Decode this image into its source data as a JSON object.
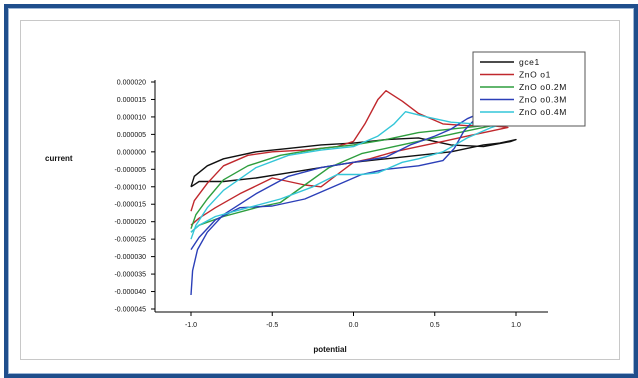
{
  "chart_data": {
    "type": "line",
    "title": "",
    "xlabel": "potential",
    "ylabel": "current",
    "xlim": [
      -1.0,
      1.0
    ],
    "ylim": [
      -4.5e-05,
      2e-05
    ],
    "xticks": [
      -1.0,
      -0.5,
      0.0,
      0.5,
      1.0
    ],
    "xtick_labels": [
      "-1.0",
      "-0.5",
      "0.0",
      "0.5",
      "1.0"
    ],
    "yticks": [
      2e-05,
      1.5e-05,
      1e-05,
      5e-06,
      0.0,
      -5e-06,
      -1e-05,
      -1.5e-05,
      -2e-05,
      -2.5e-05,
      -3e-05,
      -3.5e-05,
      -4e-05,
      -4.5e-05
    ],
    "ytick_labels": [
      "0.000020",
      "0.000015",
      "0.000010",
      "0.000005",
      "0.000000",
      "-0.000005",
      "-0.000010",
      "-0.000015",
      "-0.000020",
      "-0.000025",
      "-0.000030",
      "-0.000035",
      "-0.000040",
      "-0.000045"
    ],
    "legend_position": "top-right",
    "grid": false,
    "series": [
      {
        "name": "gce1",
        "color": "#111111",
        "points": [
          [
            -1.0,
            -1e-05
          ],
          [
            -0.98,
            -7e-06
          ],
          [
            -0.9,
            -4e-06
          ],
          [
            -0.8,
            -2e-06
          ],
          [
            -0.6,
            0.0
          ],
          [
            -0.4,
            1e-06
          ],
          [
            -0.2,
            2e-06
          ],
          [
            0.0,
            2.5e-06
          ],
          [
            0.2,
            3.5e-06
          ],
          [
            0.4,
            4e-06
          ],
          [
            0.6,
            2e-06
          ],
          [
            0.8,
            1.5e-06
          ],
          [
            0.97,
            3e-06
          ],
          [
            1.0,
            3.5e-06
          ],
          [
            0.9,
            2.5e-06
          ],
          [
            0.8,
            2e-06
          ],
          [
            0.6,
            0.0
          ],
          [
            0.4,
            -1e-06
          ],
          [
            0.2,
            -2e-06
          ],
          [
            0.0,
            -3e-06
          ],
          [
            -0.2,
            -4.5e-06
          ],
          [
            -0.4,
            -6e-06
          ],
          [
            -0.6,
            -7.5e-06
          ],
          [
            -0.8,
            -8.5e-06
          ],
          [
            -0.95,
            -8.5e-06
          ],
          [
            -1.0,
            -1e-05
          ]
        ]
      },
      {
        "name": "ZnO o1",
        "color": "#c0282d",
        "points": [
          [
            -1.0,
            -1.7e-05
          ],
          [
            -0.98,
            -1.4e-05
          ],
          [
            -0.9,
            -9e-06
          ],
          [
            -0.8,
            -4e-06
          ],
          [
            -0.65,
            -1e-06
          ],
          [
            -0.5,
            0.0
          ],
          [
            -0.3,
            5e-07
          ],
          [
            -0.1,
            1.5e-06
          ],
          [
            0.0,
            3e-06
          ],
          [
            0.07,
            8e-06
          ],
          [
            0.15,
            1.5e-05
          ],
          [
            0.2,
            1.75e-05
          ],
          [
            0.3,
            1.45e-05
          ],
          [
            0.4,
            1.1e-05
          ],
          [
            0.55,
            8e-06
          ],
          [
            0.7,
            7.5e-06
          ],
          [
            0.85,
            7.5e-06
          ],
          [
            0.95,
            7e-06
          ],
          [
            0.85,
            6e-06
          ],
          [
            0.7,
            4.5e-06
          ],
          [
            0.55,
            3e-06
          ],
          [
            0.4,
            1.5e-06
          ],
          [
            0.25,
            0.0
          ],
          [
            0.1,
            -2e-06
          ],
          [
            0.0,
            -3e-06
          ],
          [
            -0.1,
            -6.5e-06
          ],
          [
            -0.2,
            -1e-05
          ],
          [
            -0.3,
            -9.5e-06
          ],
          [
            -0.5,
            -7.5e-06
          ],
          [
            -0.7,
            -1.2e-05
          ],
          [
            -0.85,
            -1.6e-05
          ],
          [
            -0.95,
            -1.9e-05
          ],
          [
            -1.0,
            -2.1e-05
          ]
        ]
      },
      {
        "name": "ZnO o0.2M",
        "color": "#2e9e3e",
        "points": [
          [
            -1.0,
            -2.2e-05
          ],
          [
            -0.97,
            -1.8e-05
          ],
          [
            -0.9,
            -1.35e-05
          ],
          [
            -0.8,
            -8e-06
          ],
          [
            -0.65,
            -4e-06
          ],
          [
            -0.45,
            -1e-06
          ],
          [
            -0.2,
            1e-06
          ],
          [
            0.0,
            2e-06
          ],
          [
            0.2,
            3.5e-06
          ],
          [
            0.4,
            5.5e-06
          ],
          [
            0.6,
            6.5e-06
          ],
          [
            0.8,
            7.5e-06
          ],
          [
            0.95,
            9e-06
          ],
          [
            0.85,
            7.5e-06
          ],
          [
            0.65,
            5.5e-06
          ],
          [
            0.45,
            3.5e-06
          ],
          [
            0.25,
            1.5e-06
          ],
          [
            0.05,
            -5e-07
          ],
          [
            -0.15,
            -4.5e-06
          ],
          [
            -0.3,
            -9.5e-06
          ],
          [
            -0.45,
            -1.45e-05
          ],
          [
            -0.6,
            -1.6e-05
          ],
          [
            -0.8,
            -1.85e-05
          ],
          [
            -0.95,
            -2.1e-05
          ],
          [
            -1.0,
            -2.3e-05
          ]
        ]
      },
      {
        "name": "ZnO o0.3M",
        "color": "#2b3fb8",
        "points": [
          [
            -1.0,
            -4.1e-05
          ],
          [
            -0.99,
            -3.4e-05
          ],
          [
            -0.96,
            -2.8e-05
          ],
          [
            -0.9,
            -2.3e-05
          ],
          [
            -0.8,
            -1.8e-05
          ],
          [
            -0.6,
            -1.2e-05
          ],
          [
            -0.4,
            -7e-06
          ],
          [
            -0.2,
            -4.5e-06
          ],
          [
            0.0,
            -3e-06
          ],
          [
            0.2,
            -1.5e-06
          ],
          [
            0.35,
            2e-06
          ],
          [
            0.5,
            4.5e-06
          ],
          [
            0.6,
            6.5e-06
          ],
          [
            0.7,
            9.5e-06
          ],
          [
            0.8,
            1.15e-05
          ],
          [
            0.9,
            1.2e-05
          ],
          [
            0.75,
            9.5e-06
          ],
          [
            0.68,
            6e-06
          ],
          [
            0.62,
            1e-06
          ],
          [
            0.55,
            -2.5e-06
          ],
          [
            0.4,
            -4e-06
          ],
          [
            0.2,
            -5e-06
          ],
          [
            0.05,
            -6.5e-06
          ],
          [
            -0.1,
            -9.5e-06
          ],
          [
            -0.3,
            -1.35e-05
          ],
          [
            -0.5,
            -1.55e-05
          ],
          [
            -0.7,
            -1.6e-05
          ],
          [
            -0.85,
            -1.95e-05
          ],
          [
            -0.95,
            -2.45e-05
          ],
          [
            -1.0,
            -2.8e-05
          ]
        ]
      },
      {
        "name": "ZnO o0.4M",
        "color": "#34c6d8",
        "points": [
          [
            -1.0,
            -2.5e-05
          ],
          [
            -0.97,
            -2.1e-05
          ],
          [
            -0.9,
            -1.6e-05
          ],
          [
            -0.8,
            -1.1e-05
          ],
          [
            -0.6,
            -4.5e-06
          ],
          [
            -0.4,
            -1e-06
          ],
          [
            -0.2,
            5e-07
          ],
          [
            0.0,
            1.5e-06
          ],
          [
            0.15,
            4.5e-06
          ],
          [
            0.25,
            8e-06
          ],
          [
            0.32,
            1.15e-05
          ],
          [
            0.45,
            1e-05
          ],
          [
            0.6,
            8.5e-06
          ],
          [
            0.75,
            8e-06
          ],
          [
            0.9,
            8e-06
          ],
          [
            0.95,
            8.5e-06
          ],
          [
            0.85,
            7e-06
          ],
          [
            0.7,
            4e-06
          ],
          [
            0.55,
            0.0
          ],
          [
            0.4,
            -2e-06
          ],
          [
            0.3,
            -3e-06
          ],
          [
            0.15,
            -6e-06
          ],
          [
            0.05,
            -6.5e-06
          ],
          [
            -0.1,
            -6.5e-06
          ],
          [
            -0.25,
            -1e-05
          ],
          [
            -0.45,
            -1.35e-05
          ],
          [
            -0.65,
            -1.6e-05
          ],
          [
            -0.85,
            -1.85e-05
          ],
          [
            -0.95,
            -2.1e-05
          ],
          [
            -1.0,
            -2.3e-05
          ]
        ]
      }
    ]
  }
}
